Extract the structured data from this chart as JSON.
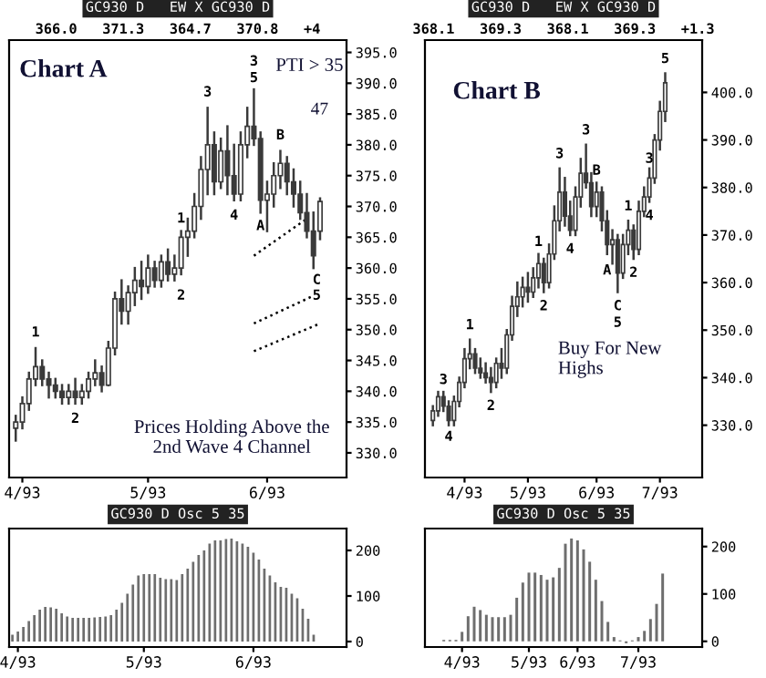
{
  "chart_data": [
    {
      "type": "candlestick",
      "title": "GC930 D   EW X GC930 D",
      "subtitle": "366.0   371.3   364.7   370.8   +4",
      "color": "#3a3a3a",
      "categories": [
        null,
        "4/93",
        null,
        null,
        null,
        null,
        null,
        null,
        null,
        null,
        null,
        null,
        null,
        null,
        null,
        null,
        null,
        null,
        null,
        null,
        "5/93",
        null,
        null,
        null,
        null,
        null,
        null,
        null,
        null,
        null,
        null,
        null,
        null,
        null,
        null,
        null,
        null,
        null,
        "6/93",
        null,
        null,
        null,
        null,
        null,
        null,
        null,
        null
      ],
      "ohlc": [
        [
          334,
          336,
          332,
          335
        ],
        [
          335,
          339,
          334,
          338
        ],
        [
          338,
          343,
          337,
          342
        ],
        [
          342,
          347,
          341,
          344
        ],
        [
          344,
          345,
          341,
          342
        ],
        [
          342,
          343,
          339,
          341
        ],
        [
          341,
          342,
          339,
          340
        ],
        [
          340,
          341,
          338,
          339
        ],
        [
          339,
          341,
          338,
          340
        ],
        [
          340,
          342,
          338,
          339
        ],
        [
          339,
          341,
          338,
          340
        ],
        [
          340,
          343,
          339,
          342
        ],
        [
          342,
          345,
          341,
          343
        ],
        [
          343,
          344,
          340,
          341
        ],
        [
          341,
          348,
          341,
          347
        ],
        [
          347,
          356,
          346,
          355
        ],
        [
          355,
          358,
          351,
          353
        ],
        [
          353,
          357,
          351,
          356
        ],
        [
          356,
          360,
          354,
          358
        ],
        [
          358,
          361,
          355,
          357
        ],
        [
          357,
          362,
          356,
          360
        ],
        [
          360,
          361,
          357,
          358
        ],
        [
          358,
          362,
          357,
          361
        ],
        [
          361,
          363,
          358,
          359
        ],
        [
          359,
          362,
          358,
          360
        ],
        [
          360,
          366,
          359,
          365
        ],
        [
          365,
          368,
          362,
          366
        ],
        [
          366,
          372,
          365,
          370
        ],
        [
          370,
          378,
          368,
          376
        ],
        [
          376,
          386,
          372,
          380
        ],
        [
          380,
          382,
          372,
          374
        ],
        [
          374,
          381,
          373,
          379
        ],
        [
          379,
          383,
          372,
          375
        ],
        [
          375,
          380,
          371,
          372
        ],
        [
          372,
          382,
          371,
          380
        ],
        [
          380,
          386,
          378,
          383
        ],
        [
          383,
          389,
          380,
          381
        ],
        [
          381,
          382,
          369,
          371
        ],
        [
          371,
          374,
          366,
          372
        ],
        [
          372,
          377,
          370,
          375
        ],
        [
          375,
          379,
          373,
          377
        ],
        [
          377,
          378,
          372,
          374
        ],
        [
          374,
          376,
          370,
          372
        ],
        [
          372,
          374,
          368,
          369
        ],
        [
          369,
          372,
          365,
          366
        ],
        [
          366,
          369,
          360,
          362
        ],
        [
          366.0,
          371.3,
          364.7,
          370.8
        ]
      ],
      "series": [
        {
          "type": "line",
          "color": "#000000",
          "values": [
            null,
            null,
            null,
            null,
            null,
            null,
            null,
            null,
            null,
            null,
            null,
            null,
            null,
            null,
            null,
            null,
            null,
            null,
            null,
            null,
            null,
            null,
            null,
            null,
            null,
            null,
            null,
            null,
            null,
            null,
            null,
            null,
            null,
            null,
            null,
            null,
            362,
            null,
            null,
            null,
            null,
            null,
            null,
            null,
            368,
            null,
            null
          ]
        },
        {
          "type": "line",
          "color": "#000000",
          "values": [
            null,
            null,
            null,
            null,
            null,
            null,
            null,
            null,
            null,
            null,
            null,
            null,
            null,
            null,
            null,
            null,
            null,
            null,
            null,
            null,
            null,
            null,
            null,
            null,
            null,
            null,
            null,
            null,
            null,
            null,
            null,
            null,
            null,
            null,
            null,
            null,
            351,
            null,
            null,
            null,
            null,
            null,
            null,
            null,
            null,
            355.5,
            null
          ]
        },
        {
          "type": "line",
          "color": "#000000",
          "values": [
            null,
            null,
            null,
            null,
            null,
            null,
            null,
            null,
            null,
            null,
            null,
            null,
            null,
            null,
            null,
            null,
            null,
            null,
            null,
            null,
            null,
            null,
            null,
            null,
            null,
            null,
            null,
            null,
            null,
            null,
            null,
            null,
            null,
            null,
            null,
            null,
            346.5,
            null,
            null,
            null,
            null,
            null,
            null,
            null,
            null,
            null,
            351
          ]
        }
      ],
      "line_style": "dotted",
      "ylim": [
        326,
        397
      ],
      "yticks": [
        {
          "value": 330,
          "label": "330.0"
        },
        {
          "value": 335,
          "label": "335.0"
        },
        {
          "value": 340,
          "label": "340.0"
        },
        {
          "value": 345,
          "label": "345.0"
        },
        {
          "value": 350,
          "label": "350.0"
        },
        {
          "value": 355,
          "label": "355.0"
        },
        {
          "value": 360,
          "label": "360.0"
        },
        {
          "value": 365,
          "label": "365.0"
        },
        {
          "value": 370,
          "label": "370.0"
        },
        {
          "value": 375,
          "label": "375.0"
        },
        {
          "value": 380,
          "label": "380.0"
        },
        {
          "value": 385,
          "label": "385.0"
        },
        {
          "value": 390,
          "label": "390.0"
        },
        {
          "value": 395,
          "label": "395.0"
        }
      ],
      "annotations": [
        "Chart A",
        "PTI > 35",
        "47",
        "Prices Holding Above the\n2nd Wave 4 Channel",
        "1",
        "2",
        "1",
        "2",
        "3",
        "4",
        "3",
        "5",
        "A",
        "B",
        "C",
        "5"
      ]
    },
    {
      "type": "candlestick",
      "title": "GC930 D   EW X GC930 D",
      "subtitle": "368.1   369.3   368.1   369.3   +1.3",
      "color": "#3a3a3a",
      "categories": [
        null,
        null,
        null,
        null,
        null,
        null,
        "4/93",
        null,
        null,
        null,
        null,
        null,
        null,
        null,
        null,
        null,
        null,
        null,
        "5/93",
        null,
        null,
        null,
        null,
        null,
        null,
        null,
        null,
        null,
        null,
        null,
        null,
        "6/93",
        null,
        null,
        null,
        null,
        null,
        null,
        null,
        null,
        null,
        null,
        null,
        "7/93",
        null
      ],
      "ohlc": [
        [
          331,
          334,
          330,
          333
        ],
        [
          333,
          337,
          332,
          336
        ],
        [
          336,
          337,
          333,
          334
        ],
        [
          334,
          335,
          330,
          331
        ],
        [
          331,
          336,
          330,
          335
        ],
        [
          335,
          340,
          334,
          339
        ],
        [
          339,
          346,
          338,
          344
        ],
        [
          344,
          348,
          342,
          345
        ],
        [
          345,
          346,
          341,
          342
        ],
        [
          342,
          344,
          340,
          341
        ],
        [
          341,
          343,
          339,
          340
        ],
        [
          340,
          342,
          337,
          339
        ],
        [
          339,
          344,
          338,
          343
        ],
        [
          343,
          346,
          340,
          342
        ],
        [
          342,
          350,
          341,
          349
        ],
        [
          349,
          357,
          348,
          355
        ],
        [
          355,
          360,
          353,
          357
        ],
        [
          357,
          361,
          355,
          359
        ],
        [
          359,
          362,
          356,
          358
        ],
        [
          358,
          363,
          357,
          361
        ],
        [
          361,
          366,
          359,
          364
        ],
        [
          364,
          365,
          358,
          360
        ],
        [
          360,
          368,
          359,
          366
        ],
        [
          366,
          376,
          365,
          373
        ],
        [
          373,
          384,
          371,
          379
        ],
        [
          379,
          382,
          372,
          374
        ],
        [
          374,
          377,
          370,
          371
        ],
        [
          371,
          380,
          370,
          378
        ],
        [
          378,
          386,
          376,
          383
        ],
        [
          383,
          389,
          380,
          381
        ],
        [
          381,
          383,
          374,
          376
        ],
        [
          376,
          381,
          374,
          379
        ],
        [
          379,
          380,
          371,
          373
        ],
        [
          373,
          375,
          366,
          368
        ],
        [
          368,
          371,
          364,
          369
        ],
        [
          369,
          370,
          358,
          362
        ],
        [
          362,
          370,
          361,
          368
        ],
        [
          368,
          373,
          366,
          371
        ],
        [
          371,
          372,
          365,
          367
        ],
        [
          367,
          377,
          366,
          375
        ],
        [
          375,
          380,
          374,
          378
        ],
        [
          378,
          384,
          377,
          382
        ],
        [
          382,
          391,
          381,
          390
        ],
        [
          390,
          398,
          388,
          396
        ],
        [
          396,
          404,
          394,
          402
        ]
      ],
      "ylim": [
        319,
        411
      ],
      "yticks": [
        {
          "value": 330,
          "label": "330.0"
        },
        {
          "value": 340,
          "label": "340.0"
        },
        {
          "value": 350,
          "label": "350.0"
        },
        {
          "value": 360,
          "label": "360.0"
        },
        {
          "value": 370,
          "label": "370.0"
        },
        {
          "value": 380,
          "label": "380.0"
        },
        {
          "value": 390,
          "label": "390.0"
        },
        {
          "value": 400,
          "label": "400.0"
        }
      ],
      "annotations": [
        "Chart B",
        "Buy For New\nHighs",
        "3",
        "4",
        "1",
        "2",
        "1",
        "2",
        "3",
        "4",
        "3",
        "A",
        "B",
        "C",
        "5",
        "1",
        "2",
        "3",
        "4",
        "5"
      ]
    },
    {
      "type": "bar",
      "title": "GC930 D Osc 5 35",
      "color": "#6e6e6e",
      "categories": [
        null,
        "4/93",
        null,
        null,
        null,
        null,
        null,
        null,
        null,
        null,
        null,
        null,
        null,
        null,
        null,
        null,
        null,
        null,
        null,
        null,
        null,
        null,
        null,
        null,
        "5/93",
        null,
        null,
        null,
        null,
        null,
        null,
        null,
        null,
        null,
        null,
        null,
        null,
        null,
        null,
        null,
        null,
        null,
        null,
        null,
        "6/93",
        null,
        null,
        null,
        null,
        null,
        null,
        null,
        null,
        null,
        null,
        null
      ],
      "values": [
        15,
        22,
        32,
        45,
        58,
        70,
        76,
        75,
        72,
        62,
        55,
        52,
        52,
        52,
        52,
        53,
        54,
        55,
        58,
        70,
        85,
        105,
        125,
        145,
        148,
        148,
        148,
        140,
        137,
        137,
        135,
        148,
        160,
        175,
        190,
        200,
        215,
        222,
        222,
        225,
        226,
        220,
        215,
        208,
        195,
        180,
        160,
        145,
        130,
        120,
        118,
        105,
        95,
        72,
        50,
        15
      ],
      "ylim": [
        -12,
        248
      ],
      "yticks": [
        0,
        100,
        200
      ]
    },
    {
      "type": "bar",
      "title": "GC930 D Osc 5 35",
      "color": "#6e6e6e",
      "categories": [
        null,
        null,
        null,
        "4/93",
        null,
        null,
        null,
        null,
        null,
        null,
        null,
        null,
        null,
        null,
        "5/93",
        null,
        null,
        null,
        null,
        null,
        null,
        null,
        "6/93",
        null,
        null,
        null,
        null,
        null,
        null,
        null,
        null,
        null,
        "7/93",
        null,
        null,
        null,
        null
      ],
      "values": [
        3,
        3,
        3,
        20,
        53,
        73,
        66,
        56,
        51,
        51,
        51,
        56,
        92,
        124,
        145,
        145,
        140,
        130,
        135,
        155,
        206,
        217,
        213,
        194,
        168,
        130,
        85,
        41,
        9,
        2,
        -4,
        2,
        9,
        22,
        47,
        79,
        143
      ],
      "ylim": [
        -12,
        238
      ],
      "yticks": [
        0,
        100,
        200
      ]
    }
  ]
}
